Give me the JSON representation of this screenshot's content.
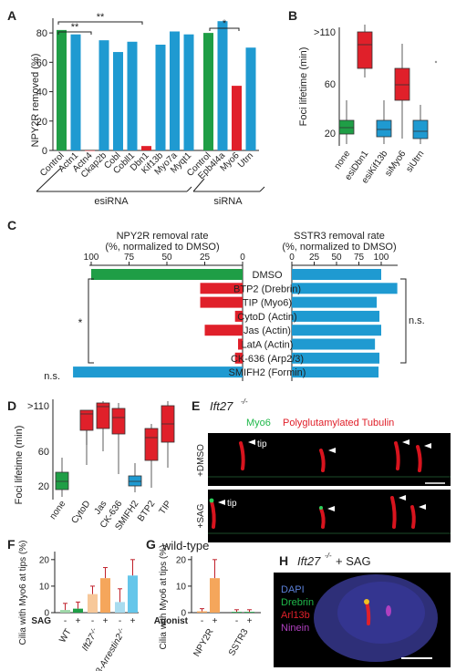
{
  "colors": {
    "green": "#1f9e46",
    "blue": "#1f9ad1",
    "red": "#e0202a",
    "black": "#222222",
    "gray": "#555555"
  },
  "panels": {
    "A": "A",
    "B": "B",
    "C": "C",
    "D": "D",
    "E": "E",
    "F": "F",
    "G": "G",
    "H": "H"
  },
  "panelA": {
    "ylabel": "NPY2R removed (%)",
    "yticks": [
      "0",
      "20",
      "40",
      "60",
      "80"
    ],
    "categories": [
      "Control",
      "Actn1",
      "Actn4",
      "Ckap2b",
      "Cobl",
      "Cobll1",
      "Dbn1",
      "Kif13b",
      "Myo7a",
      "Myqt1",
      "Control",
      "Epb4l4a",
      "Myo6",
      "Utrn"
    ],
    "values": [
      82,
      79,
      0,
      75,
      67,
      74,
      3,
      72,
      81,
      79,
      80,
      88,
      44,
      70
    ],
    "colors": [
      "green",
      "blue",
      "red",
      "blue",
      "blue",
      "blue",
      "red",
      "blue",
      "blue",
      "blue",
      "green",
      "blue",
      "red",
      "blue"
    ],
    "groups": [
      "esiRNA",
      "siRNA"
    ],
    "sig": [
      "**",
      "**",
      "*"
    ]
  },
  "panelB": {
    "ylabel": "Foci lifetime (min)",
    "yticks": [
      ">110",
      "60",
      "20"
    ],
    "categories": [
      "none",
      "esiDbn1",
      "esiKif13b",
      "siMyo6",
      "siUtrn"
    ]
  },
  "panelC": {
    "left_title_1": "NPY2R removal rate",
    "left_title_2": "(%, normalized to DMSO)",
    "right_title_1": "SSTR3 removal rate",
    "right_title_2": "(%, normalized to DMSO)",
    "left_ticks": [
      "100",
      "75",
      "50",
      "25",
      "0"
    ],
    "right_ticks": [
      "0",
      "25",
      "50",
      "75",
      "100"
    ],
    "rows": [
      "DMSO",
      "BTP2 (Drebrin)",
      "TIP (Myo6)",
      "CytoD (Actin)",
      "Jas (Actin)",
      "LatA (Actin)",
      "CK-636 (Arp2/3)",
      "SMIFH2 (Formin)"
    ],
    "npy2r": [
      100,
      28,
      28,
      5,
      25,
      3,
      5,
      112
    ],
    "sstr3": [
      100,
      118,
      95,
      98,
      100,
      93,
      98,
      97
    ],
    "npy2r_colors": [
      "green",
      "red",
      "red",
      "red",
      "red",
      "red",
      "red",
      "blue"
    ],
    "sstr3_colors": [
      "blue",
      "blue",
      "blue",
      "blue",
      "blue",
      "blue",
      "blue",
      "blue"
    ],
    "star": "*",
    "ns_left": "n.s.",
    "ns_right": "n.s."
  },
  "panelD": {
    "ylabel": "Foci lifetime (min)",
    "yticks": [
      ">110",
      "60",
      "20"
    ],
    "categories": [
      "none",
      "CytoD",
      "Jas",
      "CK-636",
      "SMIFH2",
      "BTP2",
      "TIP"
    ]
  },
  "panelE": {
    "title": "Ift27",
    "title_sup": "-/-",
    "legend_a": "Myo6",
    "legend_b": "Polyglutamylated Tubulin",
    "row1": "+DMSO",
    "row2": "+SAG",
    "tip": "tip"
  },
  "panelF": {
    "ylabel": "Cilia with Myo6 at tips (%)",
    "yticks": [
      "0",
      "10",
      "20"
    ],
    "sag": "SAG",
    "signs": [
      "-",
      "+",
      "-",
      "+",
      "-",
      "+"
    ],
    "groups": [
      "WT",
      "Ift27",
      "β-Arrestin2"
    ],
    "group_sup": "-/-",
    "values": [
      1,
      1.5,
      7,
      13,
      4,
      14
    ],
    "errors": [
      2.5,
      2.5,
      3,
      4,
      5,
      6
    ],
    "colors": [
      "#9ed8a8",
      "#1f9e46",
      "#f7c89a",
      "#f5a65b",
      "#a9dcef",
      "#65c6ea"
    ]
  },
  "panelG": {
    "title": "wild-type",
    "ylabel": "Cilia with Myo6 at tips (%)",
    "yticks": [
      "0",
      "10",
      "20"
    ],
    "agonist": "Agonist",
    "signs": [
      "-",
      "+",
      "-",
      "+"
    ],
    "groups": [
      "NPY2R",
      "SSTR3"
    ],
    "values": [
      0.5,
      13,
      0.3,
      0.3
    ],
    "errors": [
      1,
      7,
      0.8,
      0.8
    ],
    "colors": [
      "#f5a65b",
      "#f5a65b",
      "#1f9e46",
      "#1f9e46"
    ]
  },
  "panelH": {
    "title": "Ift27",
    "title_sup": "-/-",
    "title_tail": "+ SAG",
    "labels": [
      "DAPI",
      "Drebrin",
      "Arl13b",
      "Ninein"
    ],
    "label_colors": [
      "#5a7fd6",
      "#1fb84a",
      "#e0202a",
      "#b040c0"
    ]
  }
}
